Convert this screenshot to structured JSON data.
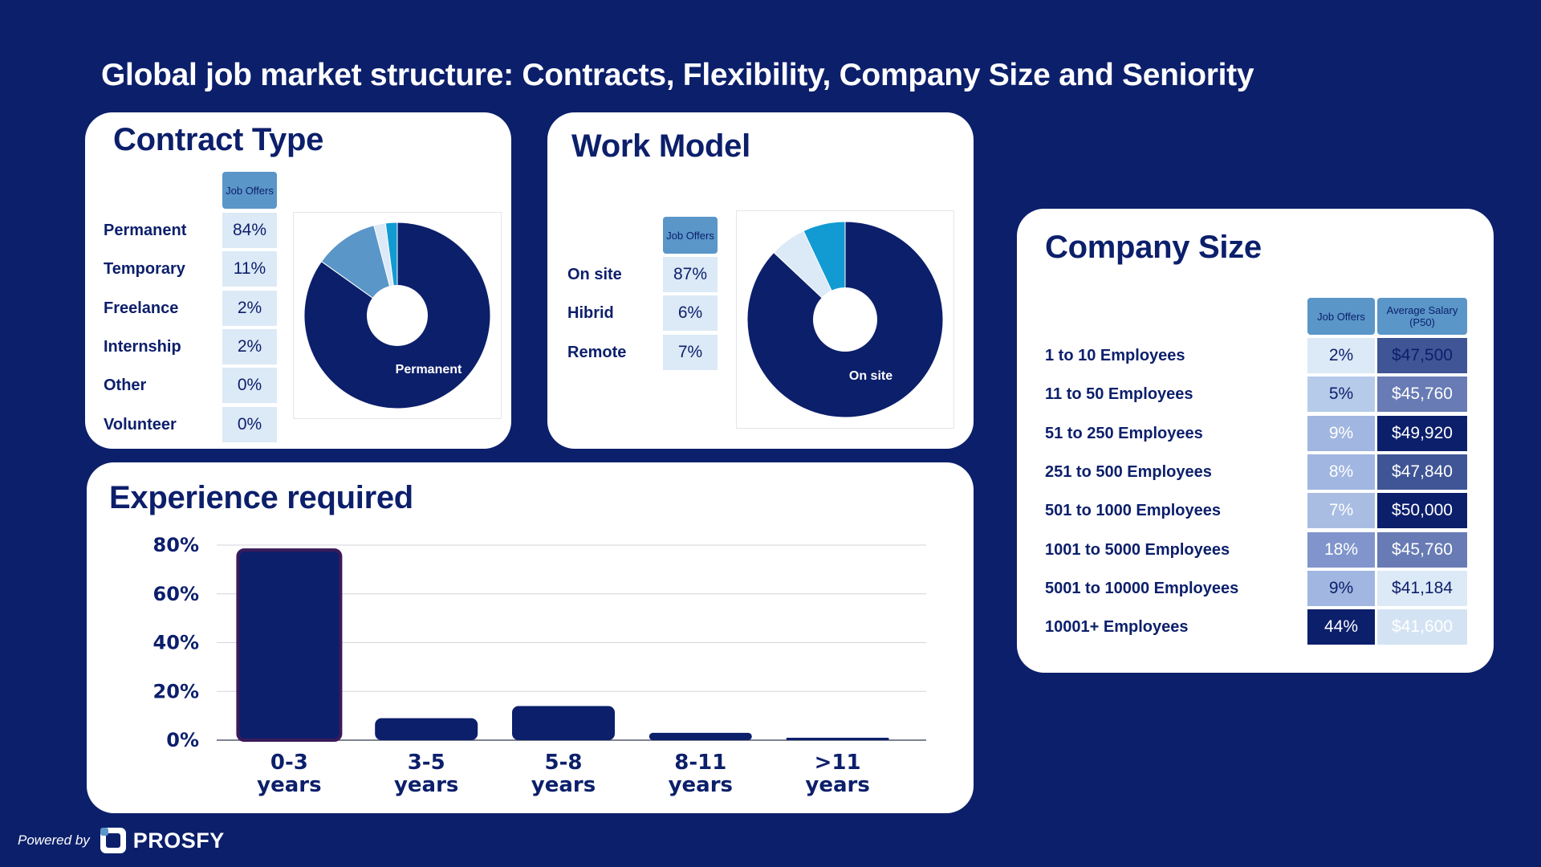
{
  "page": {
    "title": "Global job market structure: Contracts, Flexibility, Company Size and Seniority",
    "footer_powered": "Powered by",
    "footer_brand": "PROSFY"
  },
  "colors": {
    "background": "#0c1f6b",
    "navy": "#0c1f6b",
    "pie_light_blue": "#5a96c8",
    "pie_cyan": "#129bd3",
    "pie_pale": "#dce9f6"
  },
  "chart_data": [
    {
      "type": "table",
      "title": "Contract Type",
      "column_header": "Job Offers",
      "rows": [
        {
          "label": "Permanent",
          "value": "84%"
        },
        {
          "label": "Temporary",
          "value": "11%"
        },
        {
          "label": "Freelance",
          "value": "2%"
        },
        {
          "label": "Internship",
          "value": "2%"
        },
        {
          "label": "Other",
          "value": "0%"
        },
        {
          "label": "Volunteer",
          "value": "0%"
        }
      ]
    },
    {
      "type": "pie",
      "slices": [
        {
          "label": "Permanent",
          "value": 84,
          "color": "#0c1f6b"
        },
        {
          "label": "Temporary",
          "value": 11,
          "color": "#5a96c8"
        },
        {
          "label": "Freelance",
          "value": 2,
          "color": "#dce9f6"
        },
        {
          "label": "Internship",
          "value": 2,
          "color": "#129bd3"
        }
      ],
      "label_shown": "Permanent"
    },
    {
      "type": "table",
      "title": "Work Model",
      "column_header": "Job Offers",
      "rows": [
        {
          "label": "On site",
          "value": "87%"
        },
        {
          "label": "Hibrid",
          "value": "6%"
        },
        {
          "label": "Remote",
          "value": "7%"
        }
      ]
    },
    {
      "type": "pie",
      "slices": [
        {
          "label": "On site",
          "value": 87,
          "color": "#0c1f6b"
        },
        {
          "label": "Hibrid",
          "value": 6,
          "color": "#dce9f6"
        },
        {
          "label": "Remote",
          "value": 7,
          "color": "#129bd3"
        }
      ],
      "label_shown": "On site"
    },
    {
      "type": "table",
      "title": "Company Size",
      "column_headers": [
        "Job Offers",
        "Average Salary (P50)"
      ],
      "rows": [
        {
          "label": "1 to 10 Employees",
          "offers": "2%",
          "salary": "$47,500",
          "offers_bg": "#dce9f6",
          "offers_fg": "#0c1f6b",
          "salary_bg": "#3f5595",
          "salary_fg": "#0c1f6b"
        },
        {
          "label": "11 to 50 Employees",
          "offers": "5%",
          "salary": "$45,760",
          "offers_bg": "#b6cbea",
          "offers_fg": "#0c1f6b",
          "salary_bg": "#687bb4",
          "salary_fg": "#ffffff"
        },
        {
          "label": "51 to 250 Employees",
          "offers": "9%",
          "salary": "$49,920",
          "offers_bg": "#a1b6e0",
          "offers_fg": "#ffffff",
          "salary_bg": "#0c1f6b",
          "salary_fg": "#ffffff"
        },
        {
          "label": "251 to 500 Employees",
          "offers": "8%",
          "salary": "$47,840",
          "offers_bg": "#a1b6e0",
          "offers_fg": "#ffffff",
          "salary_bg": "#3f5595",
          "salary_fg": "#ffffff"
        },
        {
          "label": "501 to 1000 Employees",
          "offers": "7%",
          "salary": "$50,000",
          "offers_bg": "#a9bde3",
          "offers_fg": "#ffffff",
          "salary_bg": "#0c1f6b",
          "salary_fg": "#ffffff"
        },
        {
          "label": "1001 to 5000 Employees",
          "offers": "18%",
          "salary": "$45,760",
          "offers_bg": "#8195cc",
          "offers_fg": "#ffffff",
          "salary_bg": "#687bb4",
          "salary_fg": "#ffffff"
        },
        {
          "label": "5001 to 10000 Employees",
          "offers": "9%",
          "salary": "$41,184",
          "offers_bg": "#a1b6e0",
          "offers_fg": "#0c1f6b",
          "salary_bg": "#dce9f6",
          "salary_fg": "#0c1f6b"
        },
        {
          "label": "10001+ Employees",
          "offers": "44%",
          "salary": "$41,600",
          "offers_bg": "#0c1f6b",
          "offers_fg": "#ffffff",
          "salary_bg": "#d4e3f3",
          "salary_fg": "#ffffff"
        }
      ]
    },
    {
      "type": "bar",
      "title": "Experience required",
      "categories": [
        [
          "0-3",
          "years"
        ],
        [
          "3-5",
          "years"
        ],
        [
          "5-8",
          "years"
        ],
        [
          "8-11",
          "years"
        ],
        [
          ">11",
          "years"
        ]
      ],
      "values": [
        78,
        9,
        14,
        3,
        1
      ],
      "ylim": [
        0,
        80
      ],
      "yticks": [
        "0%",
        "20%",
        "40%",
        "60%",
        "80%"
      ],
      "ytick_values": [
        0,
        20,
        40,
        60,
        80
      ],
      "grid": true,
      "bar_color": "#0c1f6b"
    }
  ]
}
